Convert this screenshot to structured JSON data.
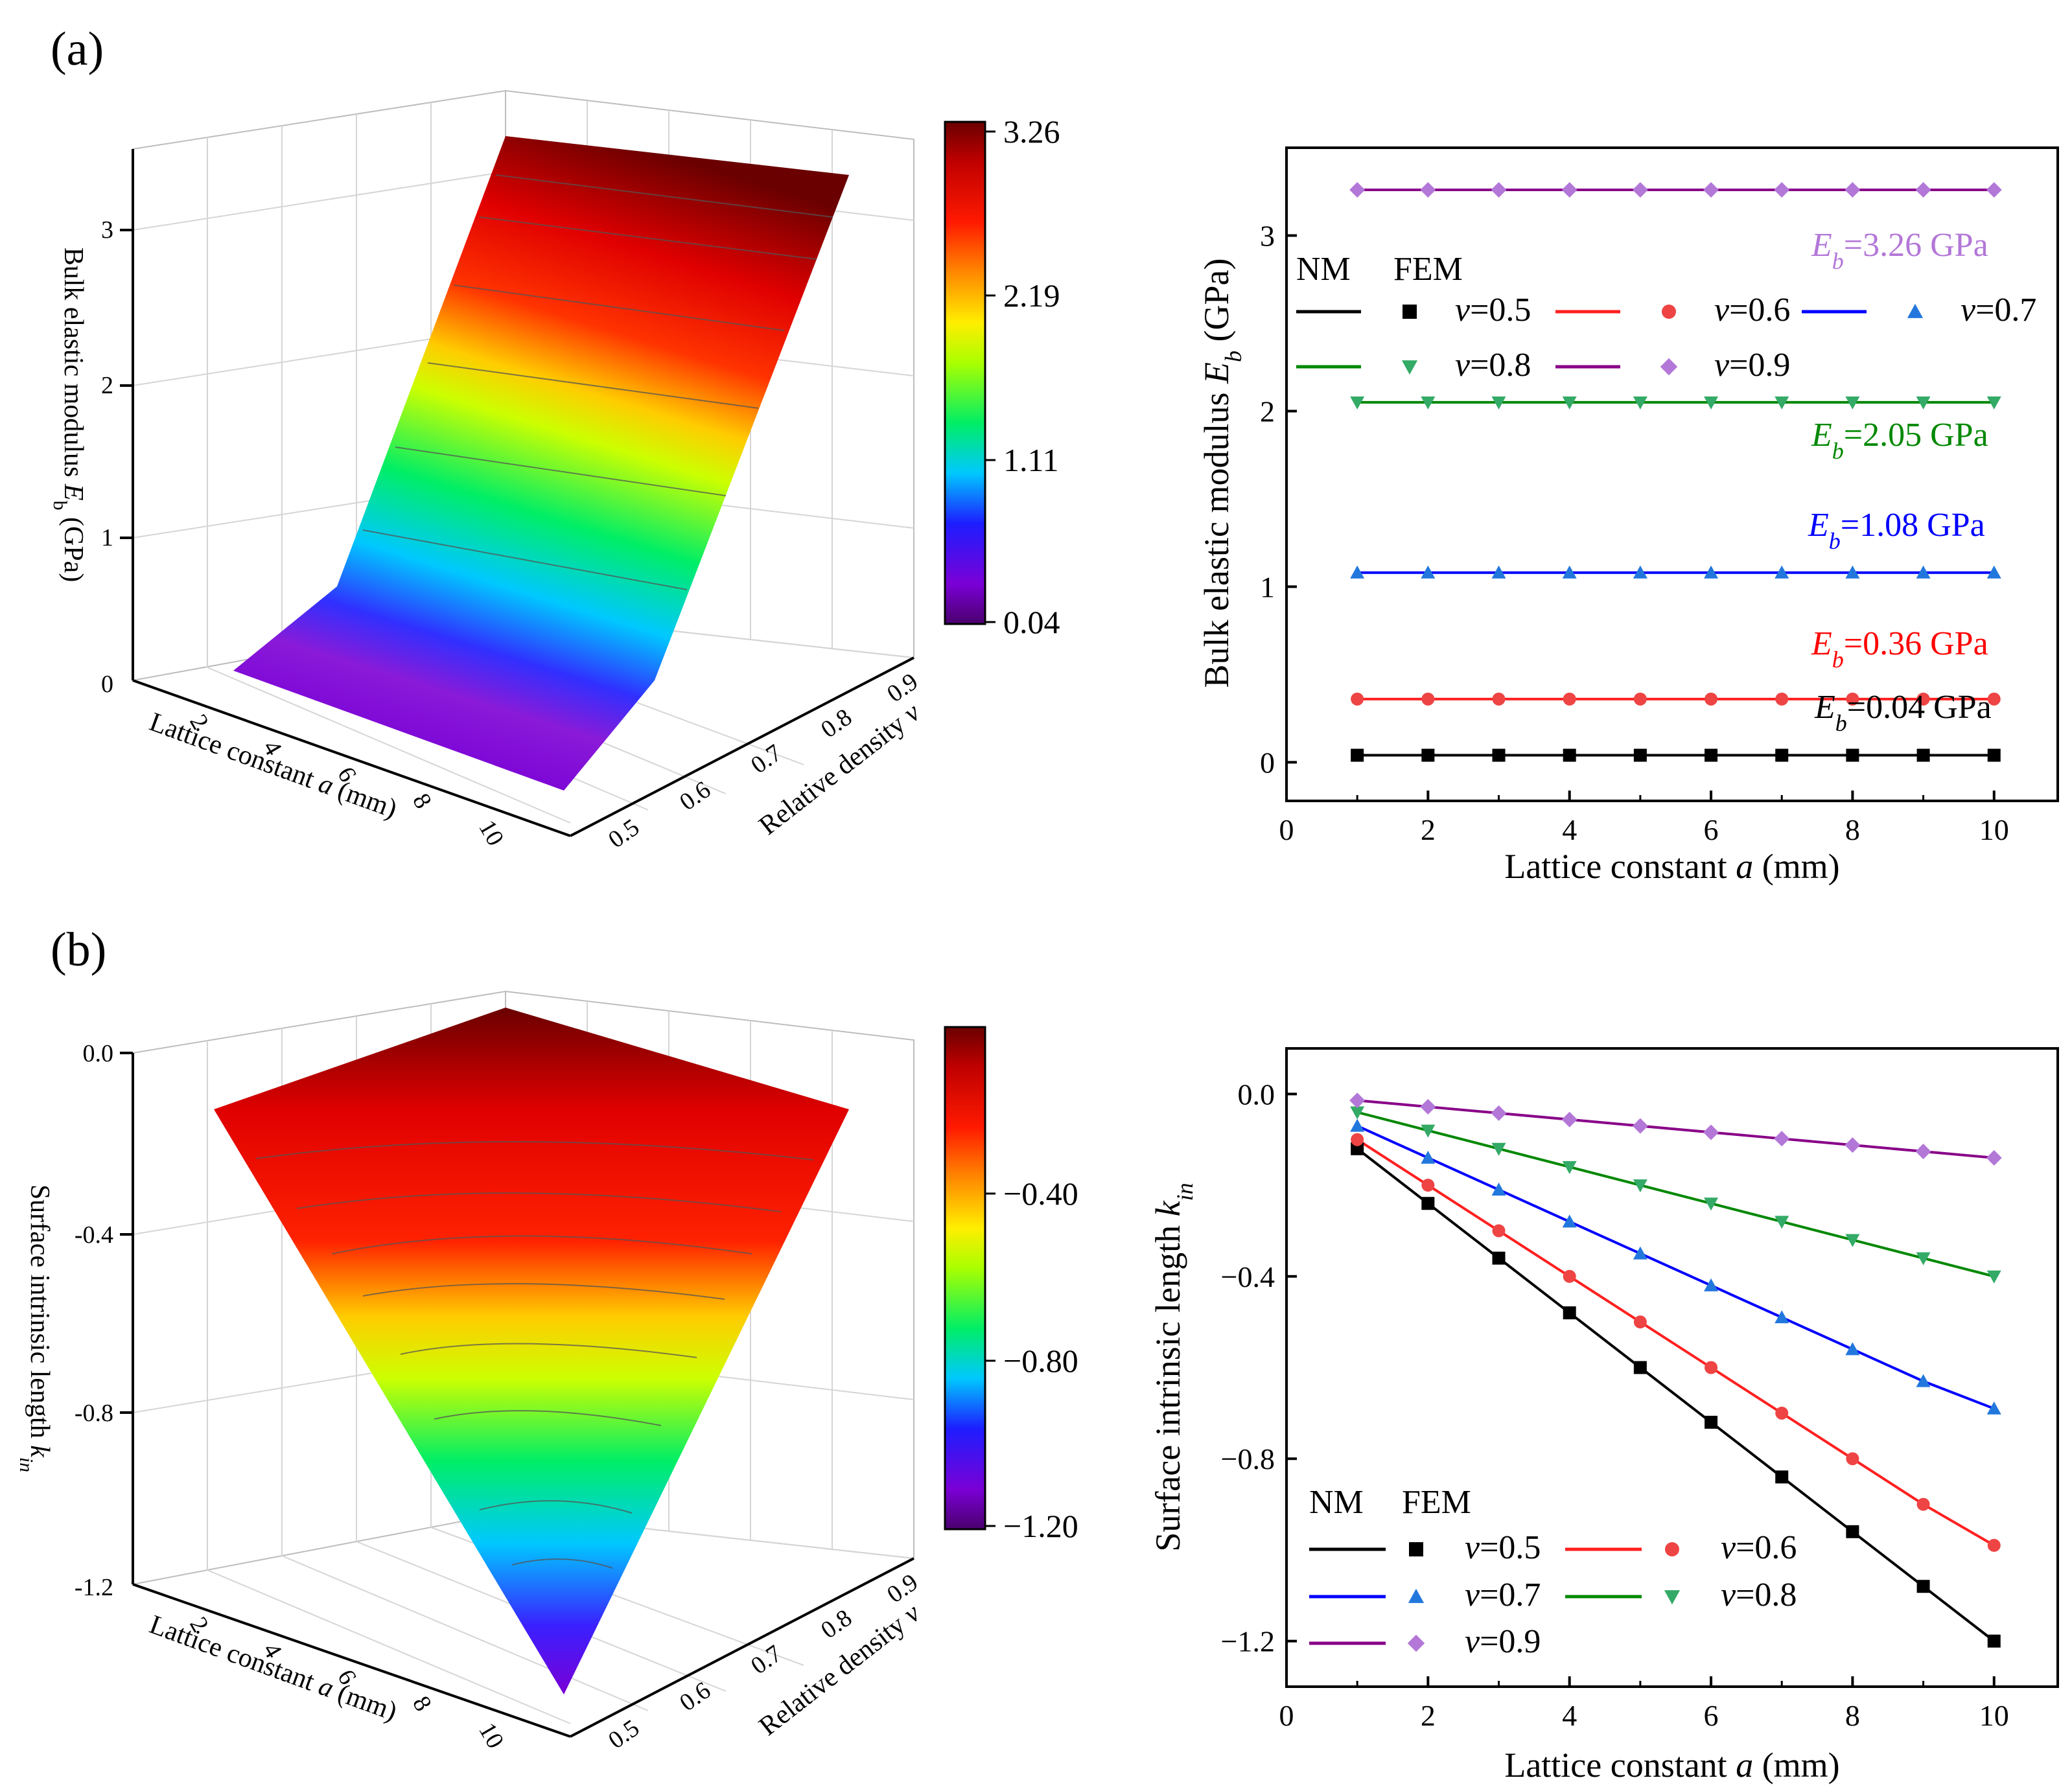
{
  "figure": {
    "panel_a_label": "(a)",
    "panel_b_label": "(b)"
  },
  "chart_data": [
    {
      "id": "a3d",
      "type": "surface3d",
      "zlabel_pre": "Bulk elastic modulus ",
      "zlabel_var": "E",
      "zlabel_sub": "b",
      "zlabel_post": " (GPa)",
      "xlabel_pre": "Lattice constant ",
      "xlabel_var": "a",
      "xlabel_post": " (mm)",
      "ylabel_pre": "Relative density ",
      "ylabel_var": "v",
      "x_ticks": [
        "2",
        "4",
        "6",
        "8",
        "10"
      ],
      "y_ticks": [
        "0.5",
        "0.6",
        "0.7",
        "0.8",
        "0.9"
      ],
      "z_ticks": [
        "0",
        "1",
        "2",
        "3"
      ],
      "colorbar_ticks": [
        "3.26",
        "2.19",
        "1.11",
        "0.04"
      ],
      "colorbar_range": [
        0.04,
        3.26
      ]
    },
    {
      "id": "a2d",
      "type": "line",
      "xlabel_pre": "Lattice constant ",
      "xlabel_var": "a",
      "xlabel_post": " (mm)",
      "ylabel_pre": "Bulk elastic modulus  ",
      "ylabel_var": "E",
      "ylabel_sub": "b",
      "ylabel_post": " (GPa)",
      "xlim": [
        0,
        10.9
      ],
      "ylim": [
        -0.22,
        3.5
      ],
      "x_ticks": [
        0,
        2,
        4,
        6,
        8,
        10
      ],
      "y_ticks": [
        0,
        1,
        2,
        3
      ],
      "legend_header": [
        "NM",
        "FEM"
      ],
      "x": [
        1,
        2,
        3,
        4,
        5,
        6,
        7,
        8,
        9,
        10
      ],
      "series": [
        {
          "name": "v=0.5",
          "var": "v",
          "label": "=0.5",
          "color": "#000000",
          "marker_color": "#000000",
          "marker": "square",
          "values": [
            0.04,
            0.04,
            0.04,
            0.04,
            0.04,
            0.04,
            0.04,
            0.04,
            0.04,
            0.04
          ]
        },
        {
          "name": "v=0.6",
          "var": "v",
          "label": "=0.6",
          "color": "#ff2020",
          "marker_color": "#ee4444",
          "marker": "circle",
          "values": [
            0.36,
            0.36,
            0.36,
            0.36,
            0.36,
            0.36,
            0.36,
            0.36,
            0.36,
            0.36
          ]
        },
        {
          "name": "v=0.7",
          "var": "v",
          "label": "=0.7",
          "color": "#0000ff",
          "marker_color": "#2277dd",
          "marker": "triangle-up",
          "values": [
            1.08,
            1.08,
            1.08,
            1.08,
            1.08,
            1.08,
            1.08,
            1.08,
            1.08,
            1.08
          ]
        },
        {
          "name": "v=0.8",
          "var": "v",
          "label": "=0.8",
          "color": "#008800",
          "marker_color": "#33aa66",
          "marker": "triangle-down",
          "values": [
            2.05,
            2.05,
            2.05,
            2.05,
            2.05,
            2.05,
            2.05,
            2.05,
            2.05,
            2.05
          ]
        },
        {
          "name": "v=0.9",
          "var": "v",
          "label": "=0.9",
          "color": "#880088",
          "marker_color": "#b377d8",
          "marker": "diamond",
          "values": [
            3.26,
            3.26,
            3.26,
            3.26,
            3.26,
            3.26,
            3.26,
            3.26,
            3.26,
            3.26
          ]
        }
      ],
      "annotations": [
        {
          "var": "E",
          "sub": "b",
          "text": "=3.26 GPa",
          "color": "#b377d8"
        },
        {
          "var": "E",
          "sub": "b",
          "text": "=2.05 GPa",
          "color": "#008800"
        },
        {
          "var": "E",
          "sub": "b",
          "text": "=1.08 GPa",
          "color": "#0000ff"
        },
        {
          "var": "E",
          "sub": "b",
          "text": "=0.36 GPa",
          "color": "#ff0000"
        },
        {
          "var": "E",
          "sub": "b",
          "text": "=0.04 GPa",
          "color": "#000000"
        }
      ]
    },
    {
      "id": "b3d",
      "type": "surface3d",
      "zlabel_pre": "Surface intrinsic length ",
      "zlabel_var": "k",
      "zlabel_sub": "in",
      "xlabel_pre": "Lattice constant ",
      "xlabel_var": "a",
      "xlabel_post": " (mm)",
      "ylabel_pre": "Relative density ",
      "ylabel_var": "v",
      "x_ticks": [
        "2",
        "4",
        "6",
        "8",
        "10"
      ],
      "y_ticks": [
        "0.5",
        "0.6",
        "0.7",
        "0.8",
        "0.9"
      ],
      "z_ticks": [
        "0.0",
        "-0.4",
        "-0.8",
        "-1.2"
      ],
      "colorbar_ticks": [
        "−0.40",
        "−0.80",
        "−1.20"
      ],
      "colorbar_range": [
        -1.2,
        0.0
      ]
    },
    {
      "id": "b2d",
      "type": "line",
      "xlabel_pre": "Lattice constant ",
      "xlabel_var": "a",
      "xlabel_post": " (mm)",
      "ylabel_pre": "Surface intrinsic length  ",
      "ylabel_var": "k",
      "ylabel_sub": "in",
      "xlim": [
        0,
        10.9
      ],
      "ylim": [
        -1.3,
        0.1
      ],
      "x_ticks": [
        0,
        2,
        4,
        6,
        8,
        10
      ],
      "y_ticks": [
        "0.0",
        "-0.4",
        "-0.8",
        "-1.2"
      ],
      "y_tick_values": [
        0.0,
        -0.4,
        -0.8,
        -1.2
      ],
      "legend_header": [
        "NM",
        "FEM"
      ],
      "x": [
        1,
        2,
        3,
        4,
        5,
        6,
        7,
        8,
        9,
        10
      ],
      "series": [
        {
          "name": "v=0.5",
          "var": "v",
          "label": "=0.5",
          "color": "#000000",
          "marker_color": "#000000",
          "marker": "square",
          "values": [
            -0.12,
            -0.24,
            -0.36,
            -0.48,
            -0.6,
            -0.72,
            -0.84,
            -0.96,
            -1.08,
            -1.2
          ]
        },
        {
          "name": "v=0.6",
          "var": "v",
          "label": "=0.6",
          "color": "#ff2020",
          "marker_color": "#ee4444",
          "marker": "circle",
          "values": [
            -0.1,
            -0.2,
            -0.3,
            -0.4,
            -0.5,
            -0.6,
            -0.7,
            -0.8,
            -0.9,
            -0.99
          ]
        },
        {
          "name": "v=0.7",
          "var": "v",
          "label": "=0.7",
          "color": "#0000ff",
          "marker_color": "#2277dd",
          "marker": "triangle-up",
          "values": [
            -0.07,
            -0.14,
            -0.21,
            -0.28,
            -0.35,
            -0.42,
            -0.49,
            -0.56,
            -0.63,
            -0.69
          ]
        },
        {
          "name": "v=0.8",
          "var": "v",
          "label": "=0.8",
          "color": "#008800",
          "marker_color": "#33aa66",
          "marker": "triangle-down",
          "values": [
            -0.04,
            -0.08,
            -0.12,
            -0.16,
            -0.2,
            -0.24,
            -0.28,
            -0.32,
            -0.36,
            -0.4
          ]
        },
        {
          "name": "v=0.9",
          "var": "v",
          "label": "=0.9",
          "color": "#880088",
          "marker_color": "#b377d8",
          "marker": "diamond",
          "values": [
            -0.014,
            -0.028,
            -0.042,
            -0.056,
            -0.07,
            -0.084,
            -0.098,
            -0.112,
            -0.126,
            -0.14
          ]
        }
      ]
    }
  ]
}
